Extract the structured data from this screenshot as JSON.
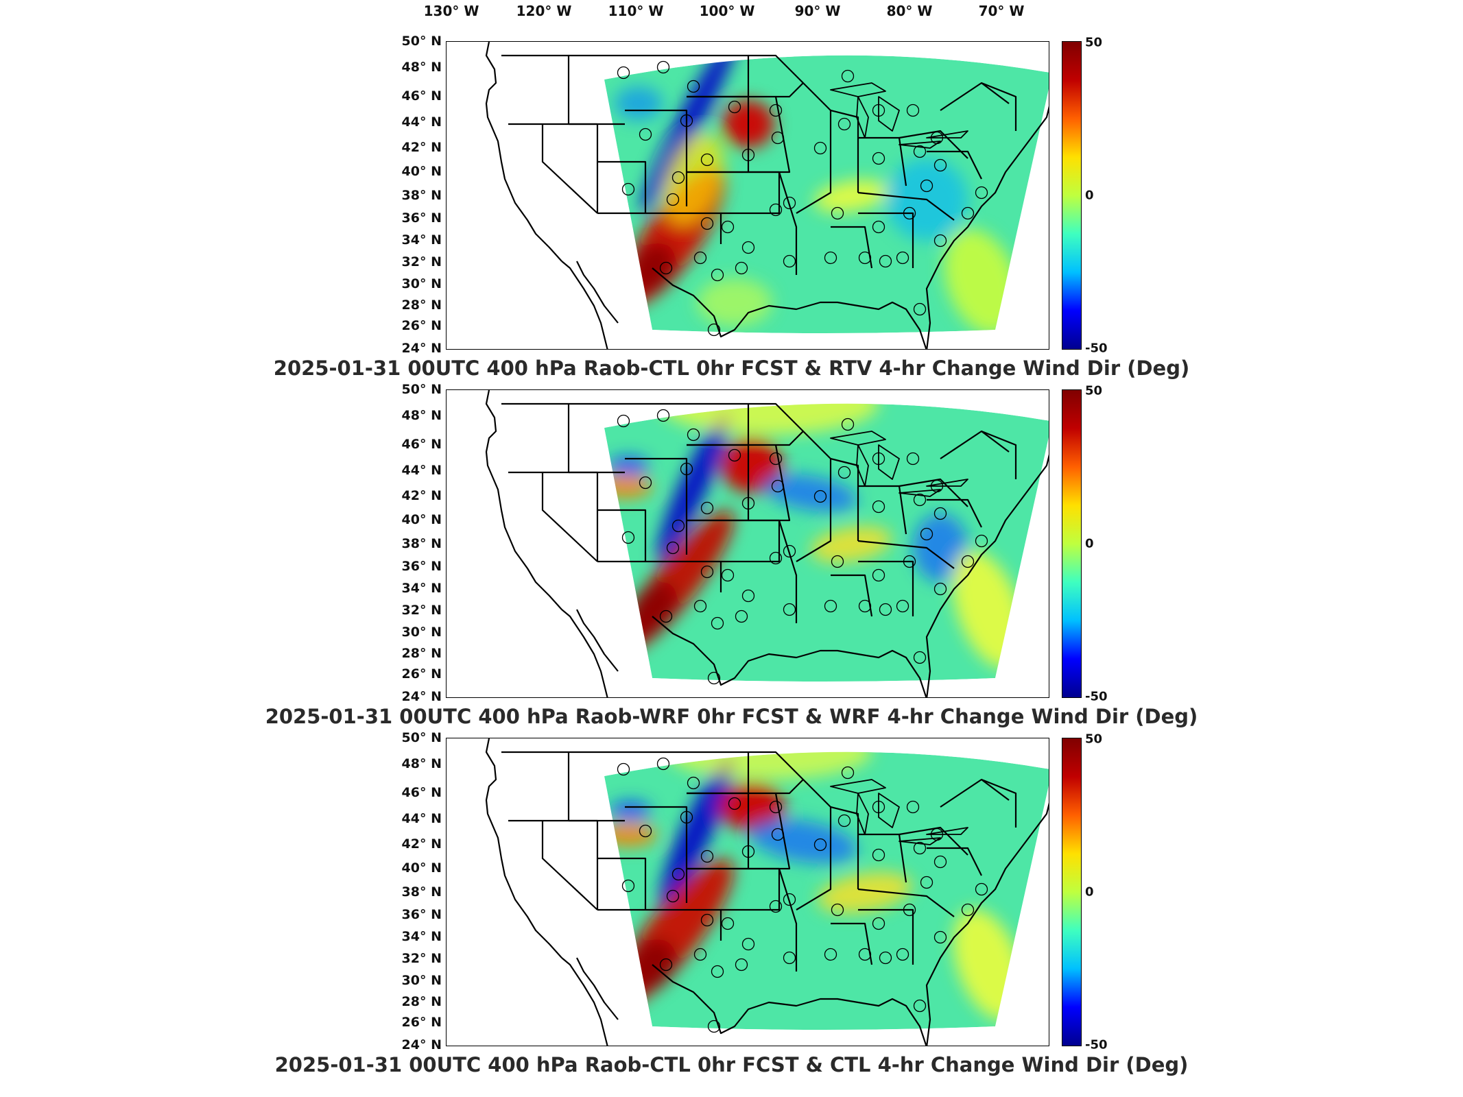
{
  "longitude_labels": [
    "130° W",
    "120° W",
    "110° W",
    "100° W",
    "90° W",
    "80° W",
    "70° W"
  ],
  "latitude_labels": [
    "50° N",
    "48° N",
    "46° N",
    "44° N",
    "42° N",
    "40° N",
    "38° N",
    "36° N",
    "34° N",
    "32° N",
    "30° N",
    "28° N",
    "26° N",
    "24° N"
  ],
  "colorbar": {
    "max_label": "50",
    "mid_label": "0",
    "min_label": "-50",
    "colormap": "jet",
    "colors": [
      "#00008f",
      "#0000ff",
      "#00c0ff",
      "#3fffbf",
      "#bfff3f",
      "#ffe000",
      "#ff6000",
      "#c00000",
      "#800000"
    ]
  },
  "colors": {
    "background_field": "#4ee6a6",
    "land_outline": "#000000",
    "station_marker": "#000000"
  },
  "panels": [
    {
      "id": "rtv",
      "title": "2025-01-31 00UTC 400 hPa Raob-CTL 0hr FCST & RTV 4-hr Change Wind Dir (Deg)"
    },
    {
      "id": "wrf",
      "title": "2025-01-31 00UTC 400 hPa Raob-WRF 0hr FCST & WRF 4-hr Change Wind Dir (Deg)"
    },
    {
      "id": "ctl",
      "title": "2025-01-31 00UTC 400 hPa Raob-CTL 0hr FCST & CTL 4-hr Change Wind Dir (Deg)"
    }
  ]
}
